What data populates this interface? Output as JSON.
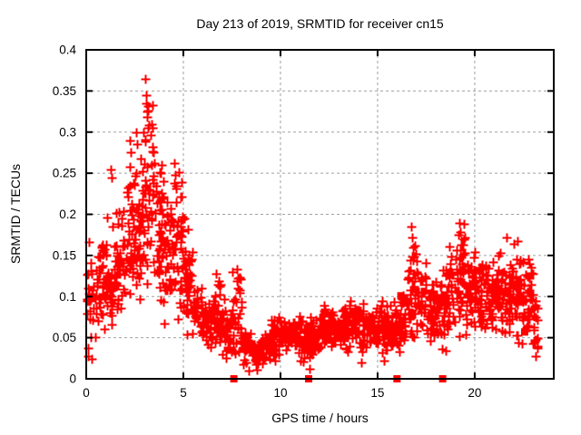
{
  "chart_data": {
    "type": "scatter",
    "title": "Day 213 of 2019, SRMTID for receiver cn15",
    "xlabel": "GPS time / hours",
    "ylabel": "SRMTID / TECUs",
    "xlim": [
      0,
      24.07
    ],
    "ylim": [
      0,
      0.4
    ],
    "xticks": {
      "values": [
        0,
        5,
        10,
        15,
        20
      ],
      "labels": [
        "0",
        "5",
        "10",
        "15",
        "20"
      ]
    },
    "yticks": {
      "values": [
        0,
        0.05,
        0.1,
        0.15,
        0.2,
        0.25,
        0.3,
        0.35,
        0.4
      ],
      "labels": [
        "0",
        "0.05",
        "0.1",
        "0.15",
        "0.2",
        "0.25",
        "0.3",
        "0.35",
        "0.4"
      ]
    },
    "grid": {
      "shown": true,
      "style": "dashed",
      "color": "#a0a0a0"
    },
    "border_color": "#000000",
    "marker_color": "#ff0000",
    "seed": 123456789,
    "series": [
      {
        "name": "srmtid-plus-markers",
        "marker": "plus",
        "color": "#ff0000",
        "density_bins": [
          [
            0.0,
            0.5,
            26,
            0.03,
            0.17
          ],
          [
            0.5,
            1.0,
            34,
            0.05,
            0.19
          ],
          [
            1.0,
            1.5,
            40,
            0.06,
            0.21
          ],
          [
            1.5,
            2.0,
            40,
            0.06,
            0.22
          ],
          [
            2.0,
            2.5,
            42,
            0.07,
            0.27
          ],
          [
            2.5,
            3.0,
            44,
            0.08,
            0.31
          ],
          [
            3.0,
            3.5,
            46,
            0.1,
            0.36
          ],
          [
            3.5,
            4.0,
            42,
            0.07,
            0.27
          ],
          [
            4.0,
            4.5,
            40,
            0.06,
            0.23
          ],
          [
            4.5,
            5.0,
            40,
            0.06,
            0.26
          ],
          [
            5.0,
            5.5,
            38,
            0.05,
            0.19
          ],
          [
            5.5,
            6.0,
            36,
            0.035,
            0.12
          ],
          [
            6.0,
            6.5,
            36,
            0.03,
            0.11
          ],
          [
            6.5,
            7.0,
            36,
            0.03,
            0.13
          ],
          [
            7.0,
            7.5,
            34,
            0.02,
            0.1
          ],
          [
            7.5,
            8.0,
            36,
            0.025,
            0.135
          ],
          [
            8.0,
            8.5,
            32,
            0.015,
            0.06
          ],
          [
            8.5,
            9.0,
            32,
            0.012,
            0.055
          ],
          [
            9.0,
            9.5,
            32,
            0.015,
            0.06
          ],
          [
            9.5,
            10.0,
            34,
            0.02,
            0.08
          ],
          [
            10.0,
            10.5,
            36,
            0.025,
            0.085
          ],
          [
            10.5,
            11.0,
            34,
            0.03,
            0.08
          ],
          [
            11.0,
            11.5,
            32,
            0.015,
            0.075
          ],
          [
            11.5,
            12.0,
            34,
            0.02,
            0.08
          ],
          [
            12.0,
            12.5,
            36,
            0.03,
            0.09
          ],
          [
            12.5,
            13.0,
            36,
            0.035,
            0.095
          ],
          [
            13.0,
            13.5,
            36,
            0.03,
            0.09
          ],
          [
            13.5,
            14.0,
            36,
            0.035,
            0.1
          ],
          [
            14.0,
            14.5,
            36,
            0.025,
            0.095
          ],
          [
            14.5,
            15.0,
            36,
            0.035,
            0.09
          ],
          [
            15.0,
            15.5,
            36,
            0.025,
            0.1
          ],
          [
            15.5,
            16.0,
            36,
            0.03,
            0.095
          ],
          [
            16.0,
            16.5,
            36,
            0.03,
            0.11
          ],
          [
            16.5,
            17.0,
            38,
            0.04,
            0.18
          ],
          [
            17.0,
            17.5,
            38,
            0.05,
            0.165
          ],
          [
            17.5,
            18.0,
            36,
            0.03,
            0.13
          ],
          [
            18.0,
            18.5,
            36,
            0.025,
            0.145
          ],
          [
            18.5,
            19.0,
            36,
            0.04,
            0.17
          ],
          [
            19.0,
            19.5,
            38,
            0.045,
            0.19
          ],
          [
            19.5,
            20.0,
            38,
            0.05,
            0.16
          ],
          [
            20.0,
            20.5,
            38,
            0.05,
            0.15
          ],
          [
            20.5,
            21.0,
            38,
            0.055,
            0.155
          ],
          [
            21.0,
            21.5,
            38,
            0.05,
            0.165
          ],
          [
            21.5,
            22.0,
            38,
            0.045,
            0.175
          ],
          [
            22.0,
            22.5,
            38,
            0.04,
            0.165
          ],
          [
            22.5,
            23.0,
            36,
            0.03,
            0.155
          ],
          [
            23.0,
            23.25,
            14,
            0.02,
            0.1
          ]
        ],
        "highlight_points": [
          [
            0.08,
            0.027
          ],
          [
            0.1,
            0.038
          ],
          [
            0.3,
            0.024
          ],
          [
            1.28,
            0.255
          ],
          [
            1.32,
            0.245
          ],
          [
            2.25,
            0.29
          ],
          [
            2.3,
            0.275
          ],
          [
            2.55,
            0.3
          ],
          [
            2.6,
            0.285
          ],
          [
            2.95,
            0.3
          ],
          [
            3.05,
            0.365
          ],
          [
            3.07,
            0.345
          ],
          [
            3.1,
            0.335
          ],
          [
            3.12,
            0.325
          ],
          [
            3.15,
            0.318
          ],
          [
            3.18,
            0.305
          ],
          [
            3.45,
            0.275
          ],
          [
            3.5,
            0.262
          ],
          [
            4.55,
            0.262
          ],
          [
            4.6,
            0.248
          ],
          [
            4.62,
            0.235
          ],
          [
            5.05,
            0.195
          ],
          [
            6.7,
            0.128
          ],
          [
            7.78,
            0.133
          ],
          [
            7.8,
            0.122
          ],
          [
            8.35,
            0.01
          ],
          [
            8.8,
            0.011
          ],
          [
            11.52,
            0.012
          ],
          [
            14.15,
            0.02
          ],
          [
            15.35,
            0.022
          ],
          [
            16.75,
            0.185
          ],
          [
            16.8,
            0.172
          ],
          [
            19.22,
            0.19
          ],
          [
            19.25,
            0.178
          ],
          [
            19.3,
            0.163
          ],
          [
            21.65,
            0.172
          ],
          [
            22.2,
            0.168
          ],
          [
            23.1,
            0.045
          ],
          [
            23.15,
            0.028
          ]
        ]
      },
      {
        "name": "square-markers",
        "marker": "filled-square",
        "color": "#ff0000",
        "points": [
          [
            7.6,
            0
          ],
          [
            11.45,
            0
          ],
          [
            16.0,
            0
          ],
          [
            18.35,
            0
          ],
          [
            11.4,
            0.052
          ],
          [
            16.2,
            0.101
          ],
          [
            18.0,
            0.056
          ],
          [
            22.57,
            0.057
          ]
        ]
      }
    ]
  }
}
